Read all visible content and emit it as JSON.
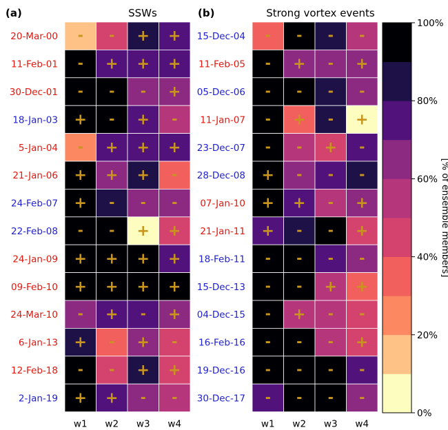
{
  "chart_data": [
    {
      "type": "heatmap",
      "panel_label": "(a)",
      "title": "SSWs",
      "columns": [
        "w1",
        "w2",
        "w3",
        "w4"
      ],
      "rows": [
        {
          "date": "20-Mar-00",
          "color": "#e3170d",
          "pct": [
            10,
            45,
            85,
            75
          ],
          "sign": [
            "-",
            "-",
            "+",
            "+"
          ]
        },
        {
          "date": "11-Feb-01",
          "color": "#e3170d",
          "pct": [
            95,
            75,
            75,
            75
          ],
          "sign": [
            "-",
            "+",
            "+",
            "+"
          ]
        },
        {
          "date": "30-Dec-01",
          "color": "#e3170d",
          "pct": [
            95,
            95,
            65,
            65
          ],
          "sign": [
            "-",
            "-",
            "-",
            "+"
          ]
        },
        {
          "date": "18-Jan-03",
          "color": "#1f1fd1",
          "pct": [
            95,
            95,
            75,
            55
          ],
          "sign": [
            "+",
            "-",
            "+",
            "-"
          ]
        },
        {
          "date": "5-Jan-04",
          "color": "#e3170d",
          "pct": [
            25,
            75,
            75,
            75
          ],
          "sign": [
            "-",
            "+",
            "+",
            "+"
          ]
        },
        {
          "date": "21-Jan-06",
          "color": "#e3170d",
          "pct": [
            95,
            65,
            85,
            35
          ],
          "sign": [
            "+",
            "+",
            "+",
            "-"
          ]
        },
        {
          "date": "24-Feb-07",
          "color": "#1f1fd1",
          "pct": [
            95,
            85,
            65,
            65
          ],
          "sign": [
            "+",
            "-",
            "-",
            "-"
          ]
        },
        {
          "date": "22-Feb-08",
          "color": "#1f1fd1",
          "pct": [
            95,
            95,
            5,
            45
          ],
          "sign": [
            "-",
            "-",
            "+",
            "+"
          ]
        },
        {
          "date": "24-Jan-09",
          "color": "#e3170d",
          "pct": [
            95,
            95,
            95,
            75
          ],
          "sign": [
            "+",
            "+",
            "+",
            "+"
          ]
        },
        {
          "date": "09-Feb-10",
          "color": "#e3170d",
          "pct": [
            95,
            95,
            95,
            95
          ],
          "sign": [
            "+",
            "+",
            "+",
            "+"
          ]
        },
        {
          "date": "24-Mar-10",
          "color": "#e3170d",
          "pct": [
            65,
            75,
            75,
            65
          ],
          "sign": [
            "-",
            "+",
            "-",
            "+"
          ]
        },
        {
          "date": "6-Jan-13",
          "color": "#e3170d",
          "pct": [
            85,
            35,
            65,
            45
          ],
          "sign": [
            "+",
            "-",
            "+",
            "-"
          ]
        },
        {
          "date": "12-Feb-18",
          "color": "#e3170d",
          "pct": [
            95,
            45,
            85,
            45
          ],
          "sign": [
            "-",
            "-",
            "+",
            "+"
          ]
        },
        {
          "date": "2-Jan-19",
          "color": "#1f1fd1",
          "pct": [
            95,
            75,
            65,
            55
          ],
          "sign": [
            "+",
            "+",
            "-",
            "-"
          ]
        }
      ]
    },
    {
      "type": "heatmap",
      "panel_label": "(b)",
      "title": "Strong vortex events",
      "columns": [
        "w1",
        "w2",
        "w3",
        "w4"
      ],
      "rows": [
        {
          "date": "15-Dec-04",
          "color": "#1f1fd1",
          "pct": [
            35,
            95,
            85,
            55
          ],
          "sign": [
            "-",
            "-",
            "-",
            "-"
          ]
        },
        {
          "date": "11-Feb-05",
          "color": "#e3170d",
          "pct": [
            95,
            65,
            65,
            65
          ],
          "sign": [
            "-",
            "+",
            "-",
            "+"
          ]
        },
        {
          "date": "05-Dec-06",
          "color": "#1f1fd1",
          "pct": [
            95,
            95,
            85,
            65
          ],
          "sign": [
            "-",
            "-",
            "-",
            "-"
          ]
        },
        {
          "date": "11-Jan-07",
          "color": "#e3170d",
          "pct": [
            95,
            35,
            85,
            5
          ],
          "sign": [
            "-",
            "+",
            "-",
            "+"
          ]
        },
        {
          "date": "23-Dec-07",
          "color": "#1f1fd1",
          "pct": [
            95,
            55,
            45,
            75
          ],
          "sign": [
            "-",
            "-",
            "+",
            "-"
          ]
        },
        {
          "date": "28-Dec-08",
          "color": "#1f1fd1",
          "pct": [
            95,
            65,
            75,
            85
          ],
          "sign": [
            "+",
            "-",
            "-",
            "-"
          ]
        },
        {
          "date": "07-Jan-10",
          "color": "#e3170d",
          "pct": [
            95,
            75,
            55,
            65
          ],
          "sign": [
            "+",
            "+",
            "-",
            "+"
          ]
        },
        {
          "date": "21-Jan-11",
          "color": "#e3170d",
          "pct": [
            75,
            85,
            95,
            45
          ],
          "sign": [
            "+",
            "-",
            "-",
            "+"
          ]
        },
        {
          "date": "18-Feb-11",
          "color": "#1f1fd1",
          "pct": [
            95,
            95,
            75,
            65
          ],
          "sign": [
            "-",
            "-",
            "-",
            "-"
          ]
        },
        {
          "date": "15-Dec-13",
          "color": "#1f1fd1",
          "pct": [
            95,
            95,
            55,
            35
          ],
          "sign": [
            "-",
            "-",
            "+",
            "+"
          ]
        },
        {
          "date": "04-Dec-15",
          "color": "#1f1fd1",
          "pct": [
            95,
            55,
            55,
            45
          ],
          "sign": [
            "-",
            "+",
            "-",
            "-"
          ]
        },
        {
          "date": "16-Feb-16",
          "color": "#1f1fd1",
          "pct": [
            95,
            95,
            55,
            45
          ],
          "sign": [
            "-",
            "-",
            "-",
            "+"
          ]
        },
        {
          "date": "19-Dec-16",
          "color": "#1f1fd1",
          "pct": [
            95,
            95,
            95,
            75
          ],
          "sign": [
            "-",
            "-",
            "-",
            "-"
          ]
        },
        {
          "date": "30-Dec-17",
          "color": "#1f1fd1",
          "pct": [
            75,
            95,
            95,
            65
          ],
          "sign": [
            "-",
            "-",
            "-",
            "-"
          ]
        }
      ]
    }
  ],
  "colorbar": {
    "label": "[% of ensemble members]",
    "ticks": [
      "0%",
      "20%",
      "40%",
      "60%",
      "80%",
      "100%"
    ],
    "tick_values": [
      0,
      20,
      40,
      60,
      80,
      100
    ],
    "bins": 10,
    "colormap": [
      "#fcfdbf",
      "#fec287",
      "#fb8861",
      "#f1605d",
      "#d3436e",
      "#b5367a",
      "#8c2981",
      "#51127c",
      "#1d1147",
      "#000004"
    ]
  },
  "sign_color": "#c9951d"
}
